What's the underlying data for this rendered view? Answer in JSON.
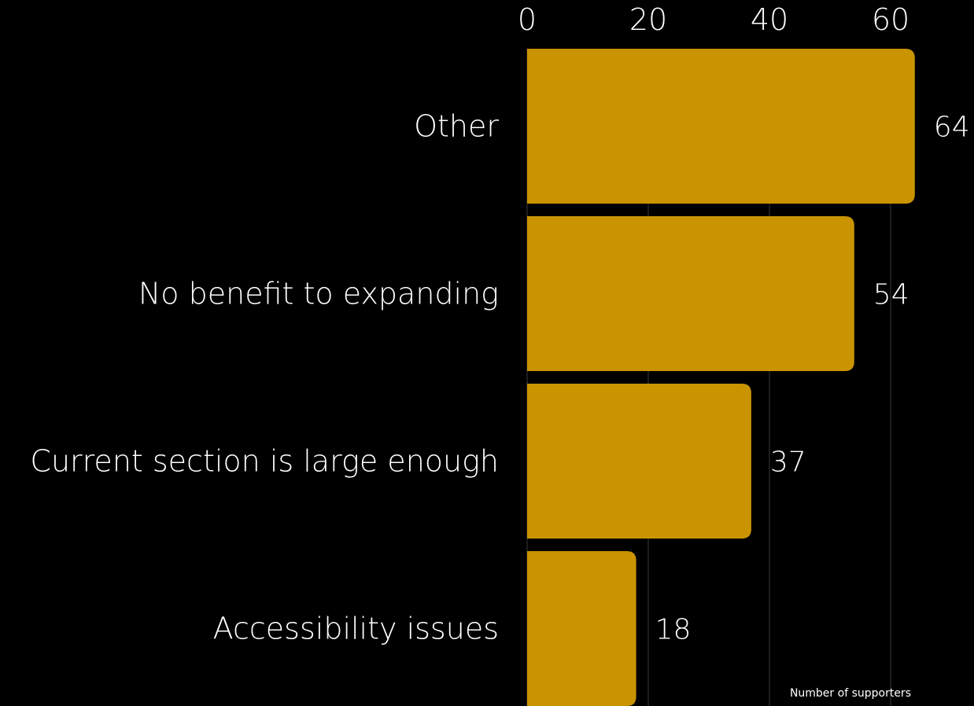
{
  "chart_data": {
    "type": "bar",
    "orientation": "horizontal",
    "categories": [
      "Other",
      "No benefit to expanding",
      "Current section is large enough",
      "Accessibility issues"
    ],
    "values": [
      64,
      54,
      37,
      18
    ],
    "xlabel": "Number of supporters",
    "ylabel": "",
    "xlim": [
      0,
      64
    ],
    "xticks": [
      0,
      20,
      40,
      60
    ],
    "x_axis_position": "top",
    "grid": true,
    "legend": "none",
    "data_labels": true,
    "colors": {
      "bar": "#C99400",
      "background": "#000000",
      "text": "#FFFFFF",
      "grid": "#3a3a3a"
    }
  }
}
